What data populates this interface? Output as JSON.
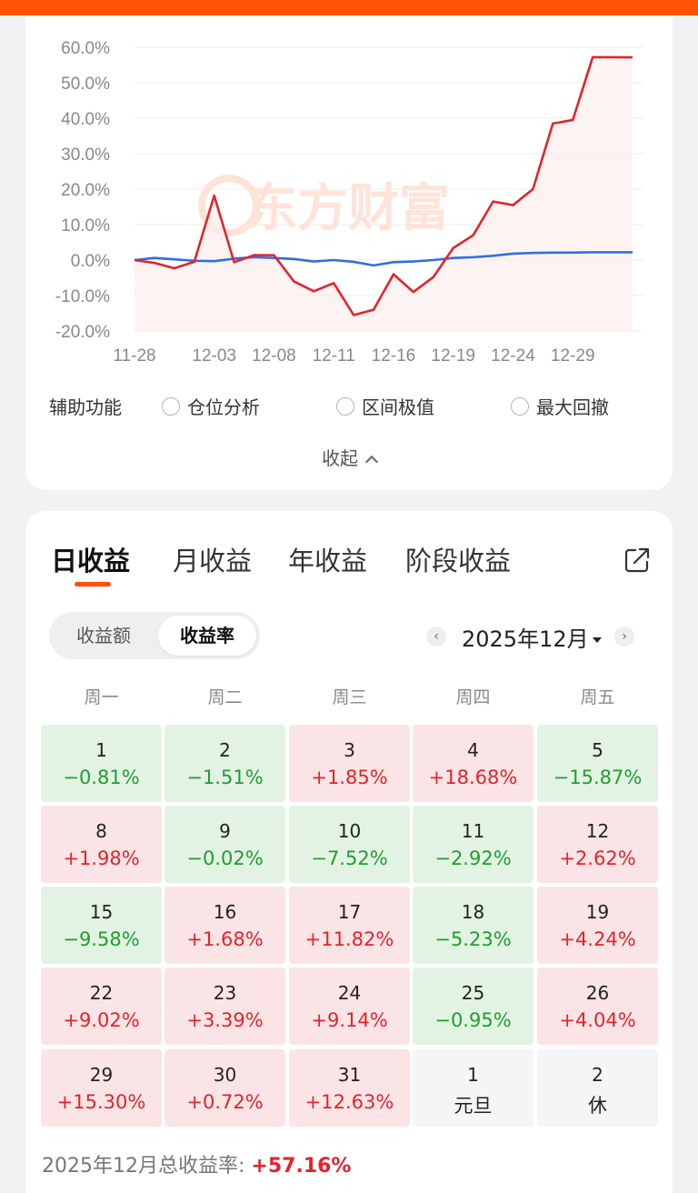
{
  "colors": {
    "accent": "#ff5206",
    "up": "#e3242b",
    "down": "#1f9e2f",
    "benchmark_line": "#2f6fe0"
  },
  "chart_data": {
    "type": "line",
    "x": [
      "11-28",
      "11-29",
      "12-01",
      "12-02",
      "12-03",
      "12-04",
      "12-05",
      "12-08",
      "12-09",
      "12-10",
      "12-11",
      "12-12",
      "12-15",
      "12-16",
      "12-17",
      "12-18",
      "12-19",
      "12-22",
      "12-23",
      "12-24",
      "12-25",
      "12-26",
      "12-29",
      "12-30",
      "12-31",
      "01-02"
    ],
    "x_tick_labels": [
      "11-28",
      "12-03",
      "12-08",
      "12-11",
      "12-16",
      "12-19",
      "12-24",
      "12-29"
    ],
    "y_tick_labels": [
      "60.0%",
      "50.0%",
      "40.0%",
      "30.0%",
      "20.0%",
      "10.0%",
      "0.0%",
      "-10.0%",
      "-20.0%"
    ],
    "ylim": [
      -20,
      60
    ],
    "grid": true,
    "watermark": "东方财富",
    "series": [
      {
        "color": "#e3242b",
        "values": [
          0,
          -0.81,
          -2.31,
          -0.5,
          18.18,
          -0.6,
          1.4,
          1.38,
          -6.0,
          -8.8,
          -6.5,
          -15.5,
          -14.0,
          -4.0,
          -9.0,
          -4.8,
          3.4,
          7.0,
          16.5,
          15.5,
          20.0,
          38.5,
          39.5,
          57.2,
          57.2,
          57.16
        ]
      },
      {
        "color": "#2f6fe0",
        "values": [
          0,
          0.6,
          0.2,
          -0.2,
          -0.3,
          0.4,
          0.8,
          0.6,
          0.3,
          -0.4,
          0.0,
          -0.5,
          -1.5,
          -0.6,
          -0.4,
          0.0,
          0.6,
          0.8,
          1.2,
          1.8,
          2.0,
          2.1,
          2.1,
          2.2,
          2.2,
          2.2
        ]
      }
    ]
  },
  "aux": {
    "label": "辅助功能",
    "options": [
      "仓位分析",
      "区间极值",
      "最大回撤"
    ]
  },
  "collapse_label": "收起",
  "tabs": [
    "日收益",
    "月收益",
    "年收益",
    "阶段收益"
  ],
  "segment": {
    "amount": "收益额",
    "rate": "收益率"
  },
  "month": {
    "label": "2025年12月",
    "prev": "‹",
    "next": "›"
  },
  "weekdays": [
    "周一",
    "周二",
    "周三",
    "周四",
    "周五"
  ],
  "calendar": [
    [
      {
        "day": "1",
        "value": "−0.81%",
        "tone": "green"
      },
      {
        "day": "2",
        "value": "−1.51%",
        "tone": "green"
      },
      {
        "day": "3",
        "value": "+1.85%",
        "tone": "red"
      },
      {
        "day": "4",
        "value": "+18.68%",
        "tone": "red"
      },
      {
        "day": "5",
        "value": "−15.87%",
        "tone": "green"
      }
    ],
    [
      {
        "day": "8",
        "value": "+1.98%",
        "tone": "red"
      },
      {
        "day": "9",
        "value": "−0.02%",
        "tone": "green"
      },
      {
        "day": "10",
        "value": "−7.52%",
        "tone": "green"
      },
      {
        "day": "11",
        "value": "−2.92%",
        "tone": "green"
      },
      {
        "day": "12",
        "value": "+2.62%",
        "tone": "red"
      }
    ],
    [
      {
        "day": "15",
        "value": "−9.58%",
        "tone": "green"
      },
      {
        "day": "16",
        "value": "+1.68%",
        "tone": "red"
      },
      {
        "day": "17",
        "value": "+11.82%",
        "tone": "red"
      },
      {
        "day": "18",
        "value": "−5.23%",
        "tone": "green"
      },
      {
        "day": "19",
        "value": "+4.24%",
        "tone": "red"
      }
    ],
    [
      {
        "day": "22",
        "value": "+9.02%",
        "tone": "red"
      },
      {
        "day": "23",
        "value": "+3.39%",
        "tone": "red"
      },
      {
        "day": "24",
        "value": "+9.14%",
        "tone": "red"
      },
      {
        "day": "25",
        "value": "−0.95%",
        "tone": "green"
      },
      {
        "day": "26",
        "value": "+4.04%",
        "tone": "red"
      }
    ],
    [
      {
        "day": "29",
        "value": "+15.30%",
        "tone": "red"
      },
      {
        "day": "30",
        "value": "+0.72%",
        "tone": "red"
      },
      {
        "day": "31",
        "value": "+12.63%",
        "tone": "red"
      },
      {
        "day": "1",
        "value": "元旦",
        "tone": "gray"
      },
      {
        "day": "2",
        "value": "休",
        "tone": "gray"
      }
    ]
  ],
  "total": {
    "label": "2025年12月总收益率:",
    "value": "+57.16%"
  }
}
